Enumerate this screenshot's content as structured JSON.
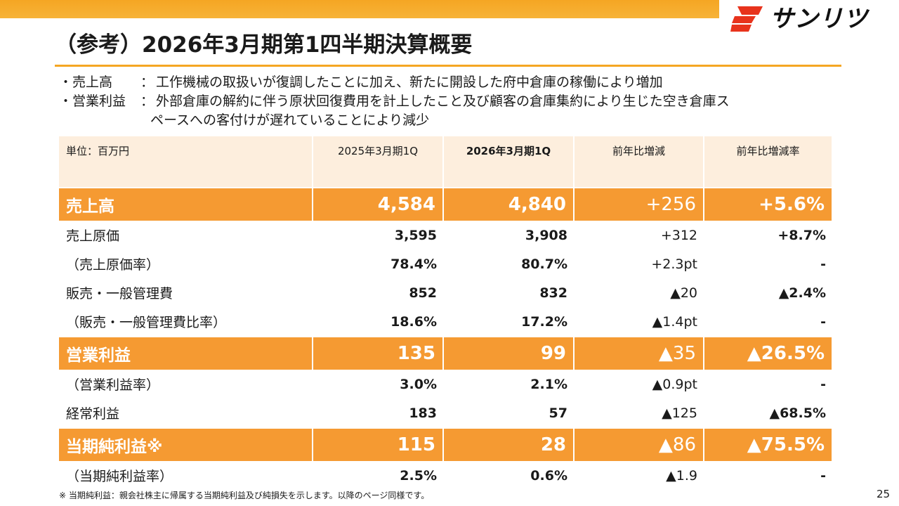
{
  "logo": {
    "text": "サンリツ",
    "accent_color": "#e8331c"
  },
  "title": "（参考）2026年3月期第1四半期決算概要",
  "bullets": [
    {
      "label": "・売上高",
      "colon": "：",
      "text": "工作機械の取扱いが復調したことに加え、新たに開設した府中倉庫の稼働により増加",
      "cont": ""
    },
    {
      "label": "・営業利益",
      "colon": "：",
      "text": "外部倉庫の解約に伴う原状回復費用を計上したこと及び顧客の倉庫集約により生じた空き倉庫ス",
      "cont": "ペースへの客付けが遅れていることにより減少"
    }
  ],
  "table": {
    "headers": [
      "単位：百万円",
      "2025年3月期1Q",
      "2026年3月期1Q",
      "前年比増減",
      "前年比増減率"
    ],
    "rows": [
      [
        "売上高",
        "4,584",
        "4,840",
        "+256",
        "+5.6%"
      ],
      [
        "売上原価",
        "3,595",
        "3,908",
        "+312",
        "+8.7%"
      ],
      [
        "（売上原価率）",
        "78.4%",
        "80.7%",
        "+2.3pt",
        "-"
      ],
      [
        "販売・一般管理費",
        "852",
        "832",
        "▲20",
        "▲2.4%"
      ],
      [
        "（販売・一般管理費比率）",
        "18.6%",
        "17.2%",
        "▲1.4pt",
        "-"
      ],
      [
        "営業利益",
        "135",
        "99",
        "▲35",
        "▲26.5%"
      ],
      [
        "（営業利益率）",
        "3.0%",
        "2.1%",
        "▲0.9pt",
        "-"
      ],
      [
        "経常利益",
        "183",
        "57",
        "▲125",
        "▲68.5%"
      ],
      [
        "当期純利益※",
        "115",
        "28",
        "▲86",
        "▲75.5%"
      ],
      [
        "（当期純利益率）",
        "2.5%",
        "0.6%",
        "▲1.9",
        "-"
      ]
    ],
    "highlight_color": "#f59a32",
    "header_bg": "#fdeedd"
  },
  "footnote": "※ 当期純利益：親会社株主に帰属する当期純利益及び純損失を示します。以降のページ同様です。",
  "page_number": "25"
}
